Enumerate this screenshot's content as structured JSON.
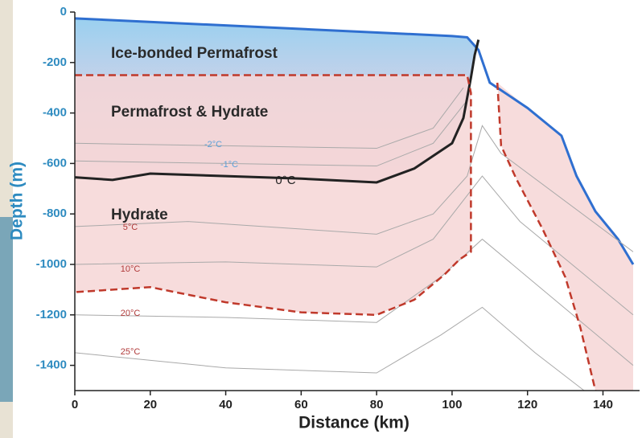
{
  "chart_data": {
    "type": "line",
    "xlabel": "Distance (km)",
    "ylabel": "Depth (m)",
    "xlim": [
      0,
      148
    ],
    "ylim": [
      0,
      -1500
    ],
    "xticks": [
      0,
      20,
      40,
      60,
      80,
      100,
      120,
      140
    ],
    "yticks": [
      0,
      -200,
      -400,
      -600,
      -800,
      -1000,
      -1200,
      -1400
    ],
    "annotations": [
      "Ice-bonded Permafrost",
      "Permafrost & Hydrate",
      "Hydrate"
    ],
    "series": [
      {
        "color": "#2f6fd0",
        "width": 3,
        "x": [
          0,
          100,
          104,
          107,
          110,
          120,
          129,
          133,
          138,
          144,
          148
        ],
        "values": [
          -25,
          -95,
          -100,
          -150,
          -280,
          -380,
          -490,
          -650,
          -790,
          -900,
          -1000
        ]
      },
      {
        "color": "#a9a9a9",
        "width": 1,
        "label": "-2°C",
        "label_color": "#5aa0d8",
        "x": [
          0,
          40,
          80,
          95,
          103
        ],
        "values": [
          -520,
          -530,
          -540,
          -460,
          -300
        ]
      },
      {
        "color": "#a9a9a9",
        "width": 1,
        "label": "-1°C",
        "label_color": "#5aa0d8",
        "x": [
          0,
          40,
          80,
          95,
          104
        ],
        "values": [
          -590,
          -600,
          -610,
          -520,
          -350
        ]
      },
      {
        "color": "#a9a9a9",
        "width": 1,
        "label": "5°C",
        "label_color": "#b03a3a",
        "x": [
          0,
          30,
          60,
          80,
          95,
          104,
          108,
          113,
          148
        ],
        "values": [
          -850,
          -830,
          -860,
          -880,
          -800,
          -650,
          -450,
          -560,
          -950
        ]
      },
      {
        "color": "#a9a9a9",
        "width": 1,
        "label": "10°C",
        "label_color": "#b03a3a",
        "x": [
          0,
          40,
          80,
          95,
          108,
          118,
          148
        ],
        "values": [
          -1000,
          -990,
          -1010,
          -900,
          -650,
          -830,
          -1200
        ]
      },
      {
        "color": "#a9a9a9",
        "width": 1,
        "label": "20°C",
        "label_color": "#b03a3a",
        "x": [
          0,
          40,
          80,
          97,
          108,
          120,
          148
        ],
        "values": [
          -1200,
          -1210,
          -1230,
          -1050,
          -900,
          -1050,
          -1400
        ]
      },
      {
        "color": "#a9a9a9",
        "width": 1,
        "label": "25°C",
        "label_color": "#b03a3a",
        "x": [
          0,
          40,
          80,
          97,
          108,
          122,
          135
        ],
        "values": [
          -1350,
          -1410,
          -1430,
          -1280,
          -1170,
          -1350,
          -1500
        ]
      },
      {
        "color": "#222222",
        "width": 3,
        "label": "0°C",
        "label_color": "#222222",
        "x": [
          0,
          10,
          20,
          40,
          60,
          80,
          90,
          100,
          103,
          105,
          106,
          107
        ],
        "values": [
          -655,
          -665,
          -640,
          -650,
          -660,
          -675,
          -620,
          -520,
          -420,
          -260,
          -170,
          -110
        ]
      },
      {
        "color": "#c0392b",
        "width": 2.5,
        "dashed": true,
        "fill": "#f6d6d6",
        "x": [
          0,
          104,
          105,
          105,
          102,
          98,
          90,
          80,
          60,
          40,
          20,
          0
        ],
        "values": [
          -250,
          -250,
          -320,
          -950,
          -980,
          -1040,
          -1140,
          -1200,
          -1190,
          -1150,
          -1090,
          -1110
        ]
      },
      {
        "color": "#c0392b",
        "width": 2.5,
        "dashed": true,
        "fill": "#f6d6d6",
        "x": [
          112,
          113,
          117,
          124,
          130,
          134,
          138
        ],
        "values": [
          -280,
          -530,
          -660,
          -860,
          -1050,
          -1250,
          -1500
        ]
      }
    ]
  }
}
